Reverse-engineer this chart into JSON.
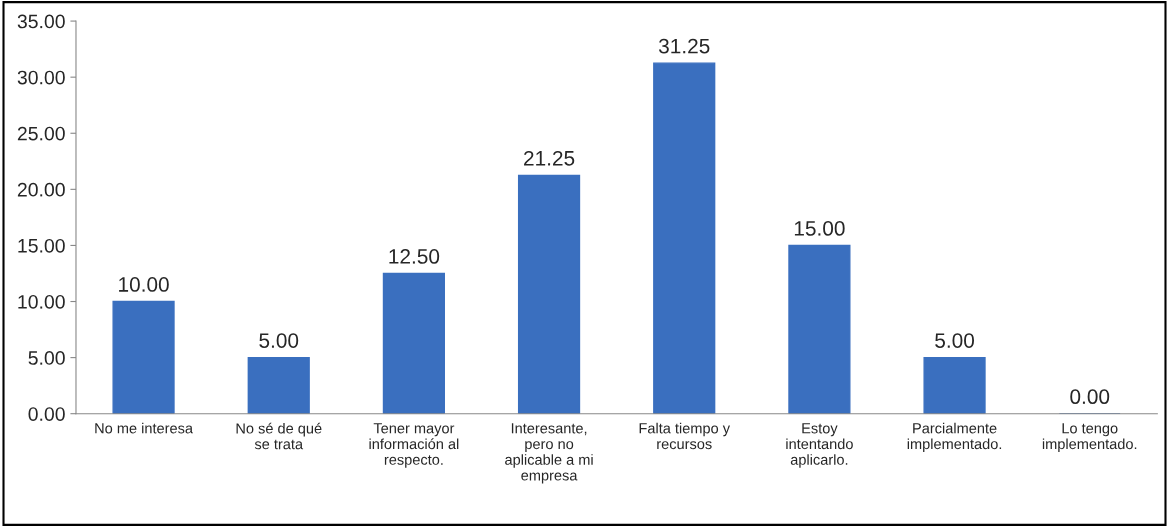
{
  "chart_data": {
    "type": "bar",
    "categories": [
      "No me interesa",
      "No sé de qué\nse trata",
      "Tener mayor\ninformación al\nrespecto.",
      "Interesante,\npero no\naplicable a mi\nempresa",
      "Falta tiempo y\nrecursos",
      "Estoy\nintentando\naplicarlo.",
      "Parcialmente\nimplementado.",
      "Lo tengo\nimplementado."
    ],
    "values": [
      10,
      5,
      12.5,
      21.25,
      31.25,
      15,
      5,
      0
    ],
    "value_labels": [
      "10.00",
      "5.00",
      "12.50",
      "21.25",
      "31.25",
      "15.00",
      "5.00",
      "0.00"
    ],
    "color": "#3a6fbf",
    "ylim": [
      0,
      35
    ],
    "yticks": [
      {
        "value": 0,
        "label": "0.00"
      },
      {
        "value": 5,
        "label": "5.00"
      },
      {
        "value": 10,
        "label": "10.00"
      },
      {
        "value": 15,
        "label": "15.00"
      },
      {
        "value": 20,
        "label": "20.00"
      },
      {
        "value": 25,
        "label": "25.00"
      },
      {
        "value": 30,
        "label": "30.00"
      },
      {
        "value": 35,
        "label": "35.00"
      }
    ],
    "grid": false,
    "legend": false
  }
}
